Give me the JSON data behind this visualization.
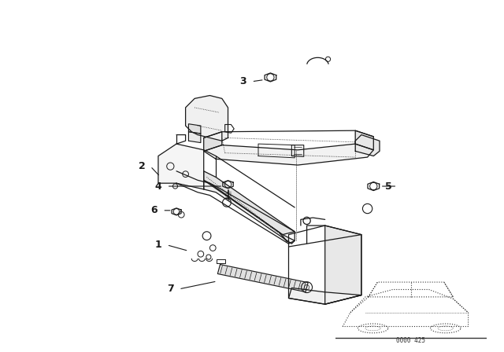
{
  "background_color": "#ffffff",
  "line_color": "#1a1a1a",
  "fig_width": 6.4,
  "fig_height": 4.48,
  "dpi": 100,
  "label_fontsize": 9,
  "watermark": "0000 425"
}
